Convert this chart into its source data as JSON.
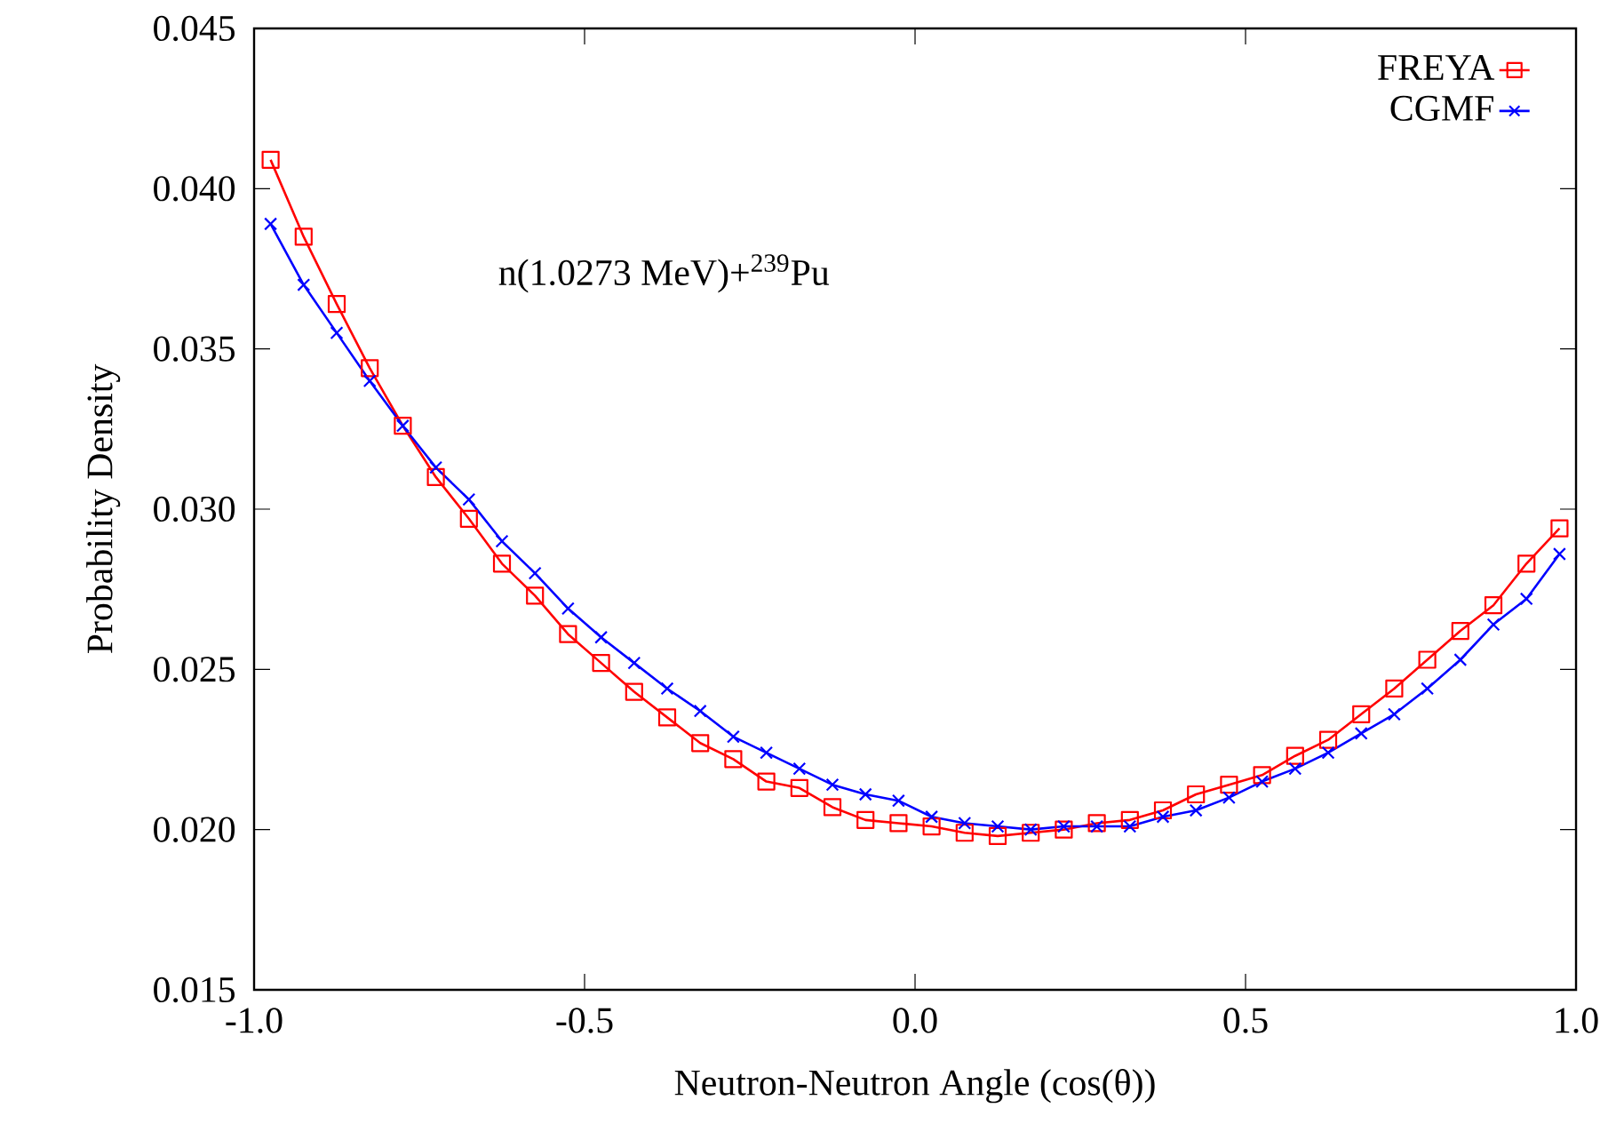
{
  "chart_data": {
    "type": "line",
    "xlabel": "Neutron-Neutron Angle (cos(θ))",
    "ylabel": "Probability Density",
    "annotations": [
      "n(1.0273 MeV)+$^{239}$Pu"
    ],
    "x": [
      -0.975,
      -0.925,
      -0.875,
      -0.825,
      -0.775,
      -0.725,
      -0.675,
      -0.625,
      -0.575,
      -0.525,
      -0.475,
      -0.425,
      -0.375,
      -0.325,
      -0.275,
      -0.225,
      -0.175,
      -0.125,
      -0.075,
      -0.025,
      0.025,
      0.075,
      0.125,
      0.175,
      0.225,
      0.275,
      0.325,
      0.375,
      0.425,
      0.475,
      0.525,
      0.575,
      0.625,
      0.675,
      0.725,
      0.775,
      0.825,
      0.875,
      0.925,
      0.975
    ],
    "series": [
      {
        "name": "FREYA",
        "color": "#ff0000",
        "marker": "square",
        "values": [
          0.0409,
          0.0385,
          0.0364,
          0.0344,
          0.0326,
          0.031,
          0.0297,
          0.0283,
          0.0273,
          0.0261,
          0.0252,
          0.0243,
          0.0235,
          0.0227,
          0.0222,
          0.0215,
          0.0213,
          0.0207,
          0.0203,
          0.0202,
          0.0201,
          0.0199,
          0.0198,
          0.0199,
          0.02,
          0.0202,
          0.0203,
          0.0206,
          0.0211,
          0.0214,
          0.0217,
          0.0223,
          0.0228,
          0.0236,
          0.0244,
          0.0253,
          0.0262,
          0.027,
          0.0283,
          0.0294
        ]
      },
      {
        "name": "CGMF",
        "color": "#0000ff",
        "marker": "cross",
        "values": [
          0.0389,
          0.037,
          0.0355,
          0.034,
          0.0326,
          0.0313,
          0.0303,
          0.029,
          0.028,
          0.0269,
          0.026,
          0.0252,
          0.0244,
          0.0237,
          0.0229,
          0.0224,
          0.0219,
          0.0214,
          0.0211,
          0.0209,
          0.0204,
          0.0202,
          0.0201,
          0.02,
          0.0201,
          0.0201,
          0.0201,
          0.0204,
          0.0206,
          0.021,
          0.0215,
          0.0219,
          0.0224,
          0.023,
          0.0236,
          0.0244,
          0.0253,
          0.0264,
          0.0272,
          0.0286
        ]
      }
    ],
    "xlim": [
      -1.0,
      1.0
    ],
    "ylim": [
      0.015,
      0.045
    ],
    "xticks": [
      {
        "value": -1.0,
        "label": "-1.0"
      },
      {
        "value": -0.5,
        "label": "-0.5"
      },
      {
        "value": 0.0,
        "label": "0.0"
      },
      {
        "value": 0.5,
        "label": "0.5"
      },
      {
        "value": 1.0,
        "label": "1.0"
      }
    ],
    "yticks": [
      {
        "value": 0.015,
        "label": "0.015"
      },
      {
        "value": 0.02,
        "label": "0.020"
      },
      {
        "value": 0.025,
        "label": "0.025"
      },
      {
        "value": 0.03,
        "label": "0.030"
      },
      {
        "value": 0.035,
        "label": "0.035"
      },
      {
        "value": 0.04,
        "label": "0.040"
      },
      {
        "value": 0.045,
        "label": "0.045"
      }
    ],
    "legend": "top right",
    "grid": false,
    "line_style": "solid"
  }
}
